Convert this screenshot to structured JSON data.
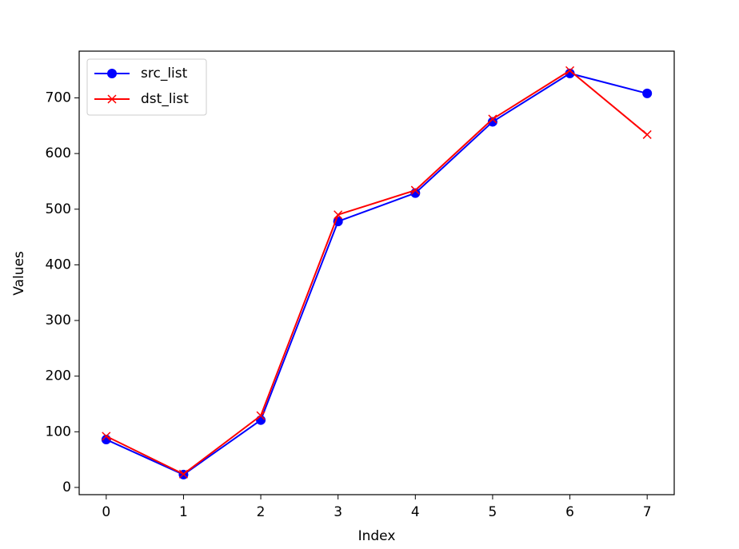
{
  "chart_data": {
    "type": "line",
    "x": [
      0,
      1,
      2,
      3,
      4,
      5,
      6,
      7
    ],
    "xlabel": "Index",
    "ylabel": "Values",
    "series": [
      {
        "name": "src_list",
        "color": "#0000ff",
        "marker": "o",
        "values": [
          86,
          23,
          121,
          478,
          529,
          657,
          744,
          708
        ]
      },
      {
        "name": "dst_list",
        "color": "#ff0000",
        "marker": "x",
        "values": [
          92,
          24,
          129,
          490,
          534,
          662,
          749,
          634
        ]
      }
    ],
    "xlim": [
      -0.35,
      7.35
    ],
    "ylim": [
      -13,
      784
    ],
    "xticks": [
      0,
      1,
      2,
      3,
      4,
      5,
      6,
      7
    ],
    "yticks": [
      0,
      100,
      200,
      300,
      400,
      500,
      600,
      700
    ],
    "legend": "upper left",
    "grid": false
  }
}
